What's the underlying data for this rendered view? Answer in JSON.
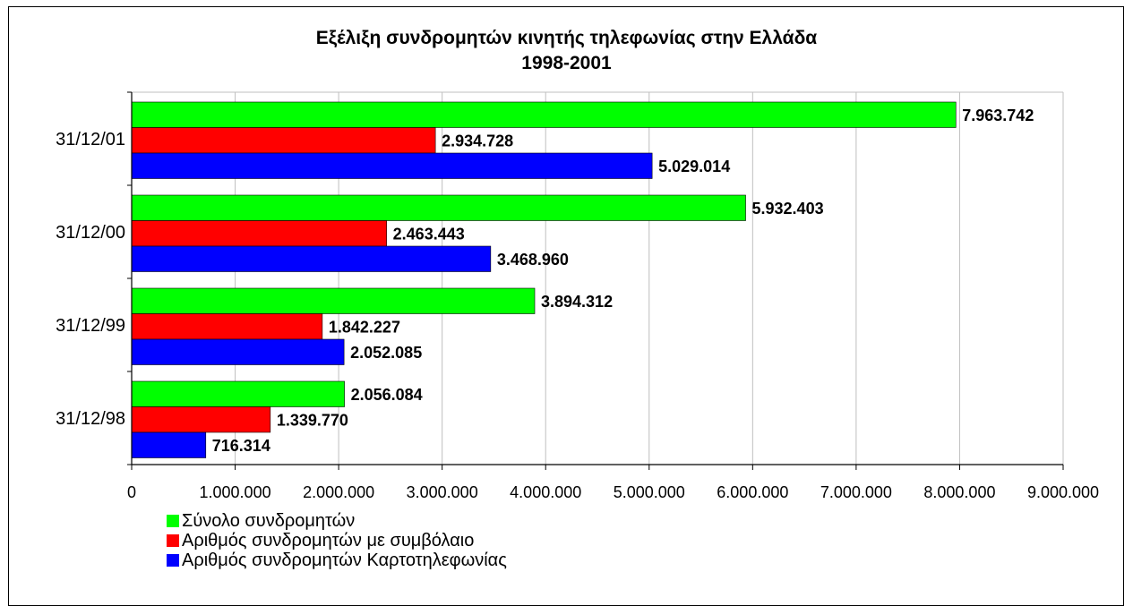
{
  "chart_data": {
    "type": "bar",
    "orientation": "horizontal",
    "title": [
      "Εξέλιξη συνδρομητών κινητής τηλεφωνίας στην Ελλάδα",
      "1998-2001"
    ],
    "categories": [
      "31/12/98",
      "31/12/99",
      "31/12/00",
      "31/12/01"
    ],
    "series": [
      {
        "name": "Σύνολο συνδρομητών",
        "color": "#00ff00",
        "values": [
          2056084,
          3894312,
          5932403,
          7963742
        ],
        "labels": [
          "2.056.084",
          "3.894.312",
          "5.932.403",
          "7.963.742"
        ]
      },
      {
        "name": "Αριθμός συνδρομητών με συμβόλαιο",
        "color": "#ff0000",
        "values": [
          1339770,
          1842227,
          2463443,
          2934728
        ],
        "labels": [
          "1.339.770",
          "1.842.227",
          "2.463.443",
          "2.934.728"
        ]
      },
      {
        "name": "Αριθμός συνδρομητών Καρτοτηλεφωνίας",
        "color": "#0000ff",
        "values": [
          716314,
          2052085,
          3468960,
          5029014
        ],
        "labels": [
          "716.314",
          "2.052.085",
          "3.468.960",
          "5.029.014"
        ]
      }
    ],
    "xlim": [
      0,
      9000000
    ],
    "xticks": [
      0,
      1000000,
      2000000,
      3000000,
      4000000,
      5000000,
      6000000,
      7000000,
      8000000,
      9000000
    ],
    "xtick_labels": [
      "0",
      "1.000.000",
      "2.000.000",
      "3.000.000",
      "4.000.000",
      "5.000.000",
      "6.000.000",
      "7.000.000",
      "8.000.000",
      "9.000.000"
    ],
    "xlabel": "",
    "ylabel": "",
    "grid": true,
    "legend_position": "bottom-left"
  }
}
